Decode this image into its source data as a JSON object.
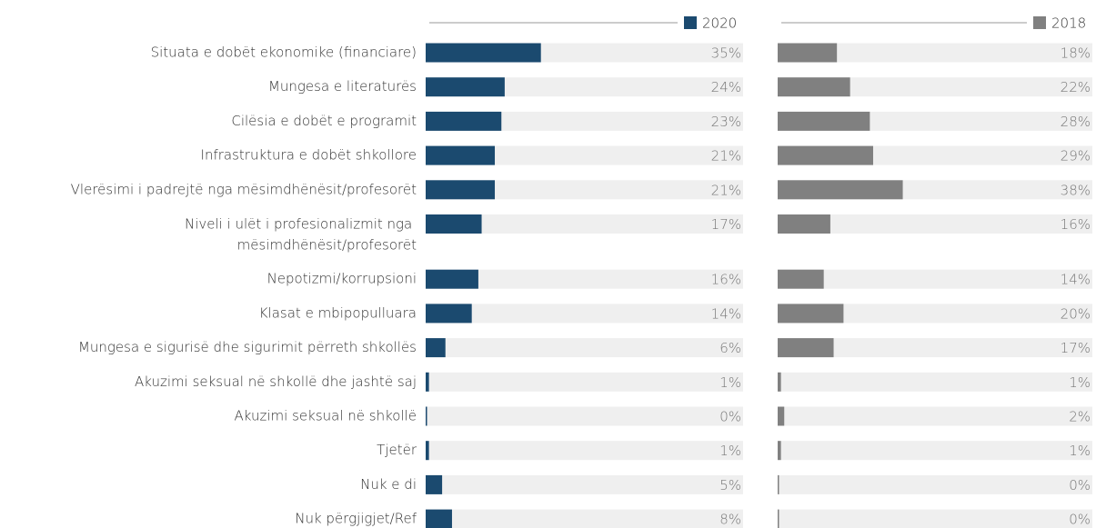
{
  "chart_data": {
    "type": "bar",
    "orientation": "horizontal",
    "categories": [
      "Situata e dobët ekonomike (financiare)",
      "Mungesa e literaturës",
      "Cilësia e dobët e programit",
      "Infrastruktura e dobët shkollore",
      "Vlerësimi i padrejtë nga mësimdhënësit/profesorët",
      "Niveli i ulët i profesionalizmit nga mësimdhënësit/profesorët",
      "Nepotizmi/korrupsioni",
      "Klasat e mbipopulluara",
      "Mungesa e sigurisë dhe sigurimit përreth shkollës",
      "Akuzimi seksual në shkollë dhe jashtë saj",
      "Akuzimi seksual në shkollë",
      "Tjetër",
      "Nuk e di",
      "Nuk përgjigjet/Ref"
    ],
    "series": [
      {
        "name": "2020",
        "color": "#1b4a6f",
        "values": [
          35,
          24,
          23,
          21,
          21,
          17,
          16,
          14,
          6,
          1,
          0,
          1,
          5,
          8
        ],
        "value_labels": [
          "35%",
          "24%",
          "23%",
          "21%",
          "21%",
          "17%",
          "16%",
          "14%",
          "6%",
          "1%",
          "0%",
          "1%",
          "5%",
          "8%"
        ]
      },
      {
        "name": "2018",
        "color": "#808080",
        "values": [
          18,
          22,
          28,
          29,
          38,
          16,
          14,
          20,
          17,
          1,
          2,
          1,
          0,
          0
        ],
        "value_labels": [
          "18%",
          "22%",
          "28%",
          "29%",
          "38%",
          "16%",
          "14%",
          "20%",
          "17%",
          "1%",
          "2%",
          "1%",
          "0%",
          "0%"
        ]
      }
    ]
  }
}
